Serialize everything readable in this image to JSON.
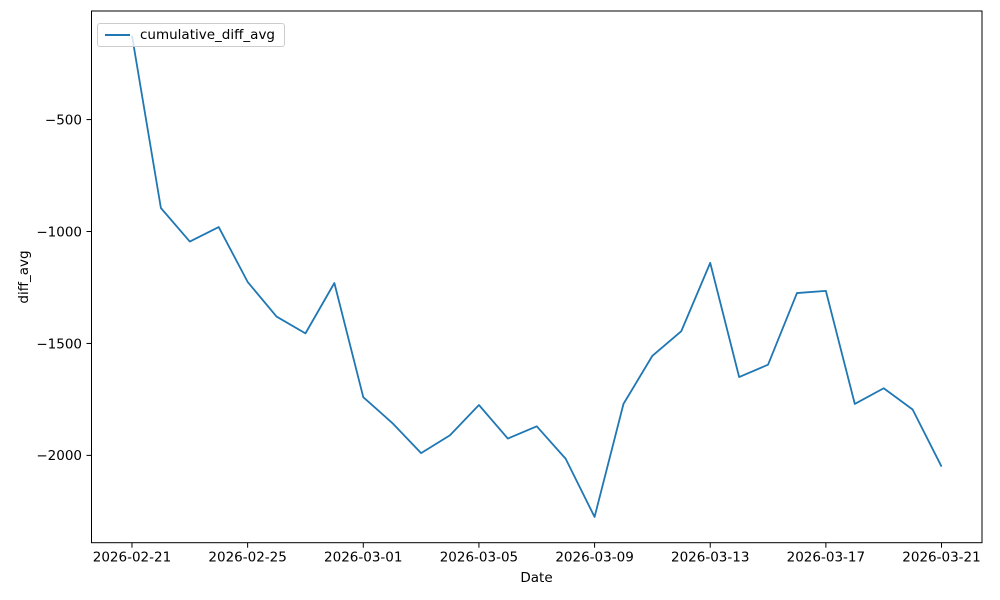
{
  "figure": {
    "background": "#ffffff",
    "text_color": "#000000",
    "spine_color": "#000000"
  },
  "chart_data": {
    "type": "line",
    "title": "",
    "xlabel": "Date",
    "ylabel": "diff_avg",
    "legend": {
      "label": "cumulative_diff_avg",
      "position": "upper-left"
    },
    "series": [
      {
        "name": "cumulative_diff_avg",
        "color": "#1f77b4",
        "dates": [
          "2026-02-21",
          "2026-02-22",
          "2026-02-23",
          "2026-02-24",
          "2026-02-25",
          "2026-02-26",
          "2026-02-27",
          "2026-02-28",
          "2026-03-01",
          "2026-03-02",
          "2026-03-03",
          "2026-03-04",
          "2026-03-05",
          "2026-03-06",
          "2026-03-07",
          "2026-03-08",
          "2026-03-09",
          "2026-03-10",
          "2026-03-11",
          "2026-03-12",
          "2026-03-13",
          "2026-03-14",
          "2026-03-15",
          "2026-03-16",
          "2026-03-17",
          "2026-03-18",
          "2026-03-19",
          "2026-03-20",
          "2026-03-21"
        ],
        "values": [
          -125,
          -895,
          -1045,
          -980,
          -1225,
          -1380,
          -1455,
          -1230,
          -1740,
          -1855,
          -1990,
          -1910,
          -1775,
          -1925,
          -1870,
          -2015,
          -2275,
          -1770,
          -1555,
          -1445,
          -1140,
          -1650,
          -1595,
          -1275,
          -1265,
          -1770,
          -1700,
          -1795,
          -2050
        ]
      }
    ],
    "x_ticks": {
      "day_indices": [
        0,
        4,
        8,
        12,
        16,
        20,
        24,
        28
      ],
      "labels": [
        "2026-02-21",
        "2026-02-25",
        "2026-03-01",
        "2026-03-05",
        "2026-03-09",
        "2026-03-13",
        "2026-03-17",
        "2026-03-21"
      ]
    },
    "y_ticks": [
      -500,
      -1000,
      -1500,
      -2000
    ],
    "axes": {
      "xlim_days": [
        -1.4,
        29.4
      ],
      "ylim": [
        -2390,
        -15
      ],
      "grid": false,
      "box": true
    }
  }
}
